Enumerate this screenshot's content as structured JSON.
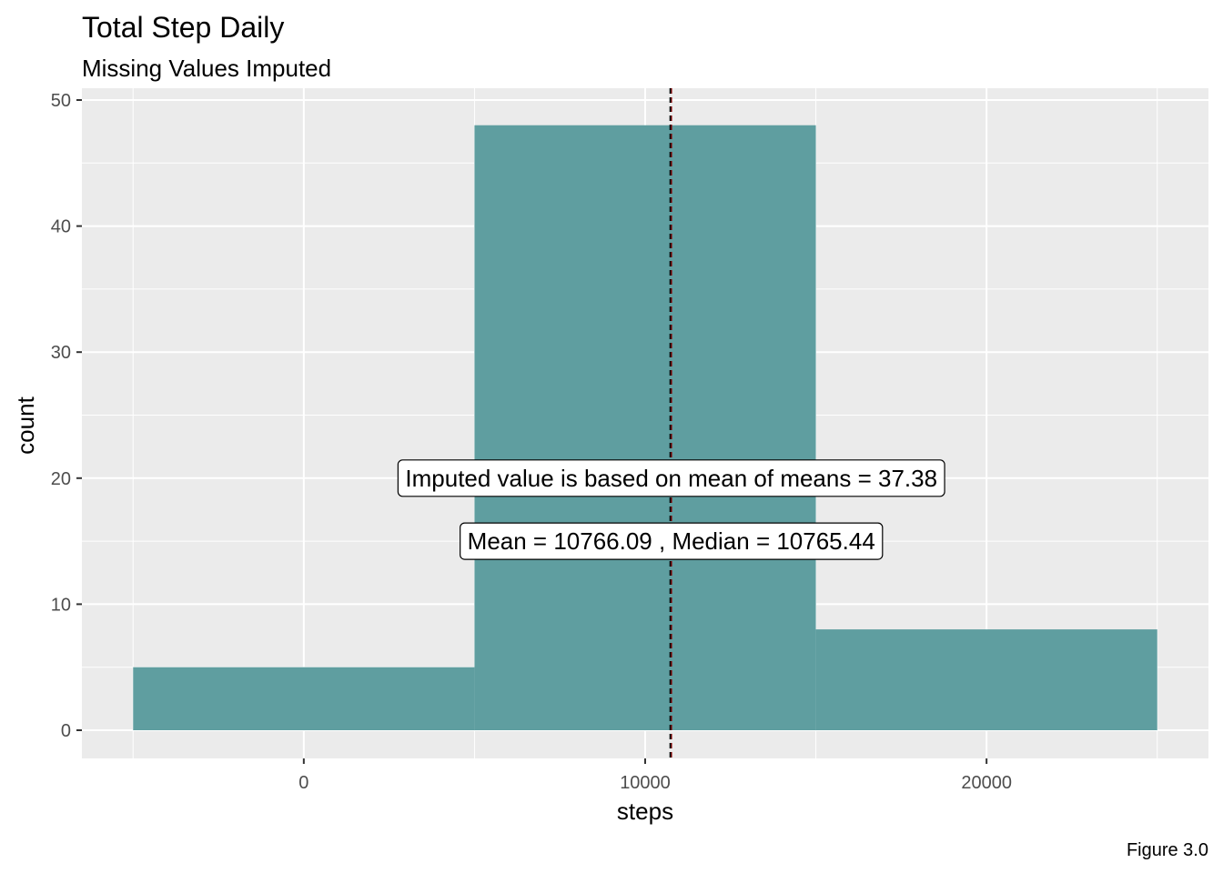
{
  "chart_data": {
    "type": "bar",
    "title": "Total Step Daily",
    "subtitle": "Missing Values Imputed",
    "xlabel": "steps",
    "ylabel": "count",
    "caption": "Figure 3.0",
    "xlim": [
      -5000,
      25000
    ],
    "ylim": [
      0,
      50
    ],
    "x_ticks": [
      0,
      10000,
      20000
    ],
    "x_tick_labels": [
      "0",
      "10000",
      "20000"
    ],
    "y_ticks": [
      0,
      10,
      20,
      30,
      40,
      50
    ],
    "y_tick_labels": [
      "0",
      "10",
      "20",
      "30",
      "40",
      "50"
    ],
    "bins": [
      {
        "x_start": -5000,
        "x_end": 5000,
        "count": 5
      },
      {
        "x_start": 5000,
        "x_end": 15000,
        "count": 48
      },
      {
        "x_start": 15000,
        "x_end": 25000,
        "count": 8
      }
    ],
    "bar_color": "#5f9ea0",
    "panel_background": "#ebebeb",
    "grid": true,
    "reference_lines": [
      {
        "x": 10766.09,
        "style": "dashed",
        "color": "#8b0000"
      },
      {
        "x": 10765.44,
        "style": "dashed",
        "color": "#000000"
      }
    ],
    "annotations": [
      {
        "text": "Imputed value is based on mean of means =  37.38",
        "x": 10766,
        "y": 20
      },
      {
        "text": "Mean = 10766.09 ,  Median = 10765.44",
        "x": 10766,
        "y": 15
      }
    ]
  }
}
